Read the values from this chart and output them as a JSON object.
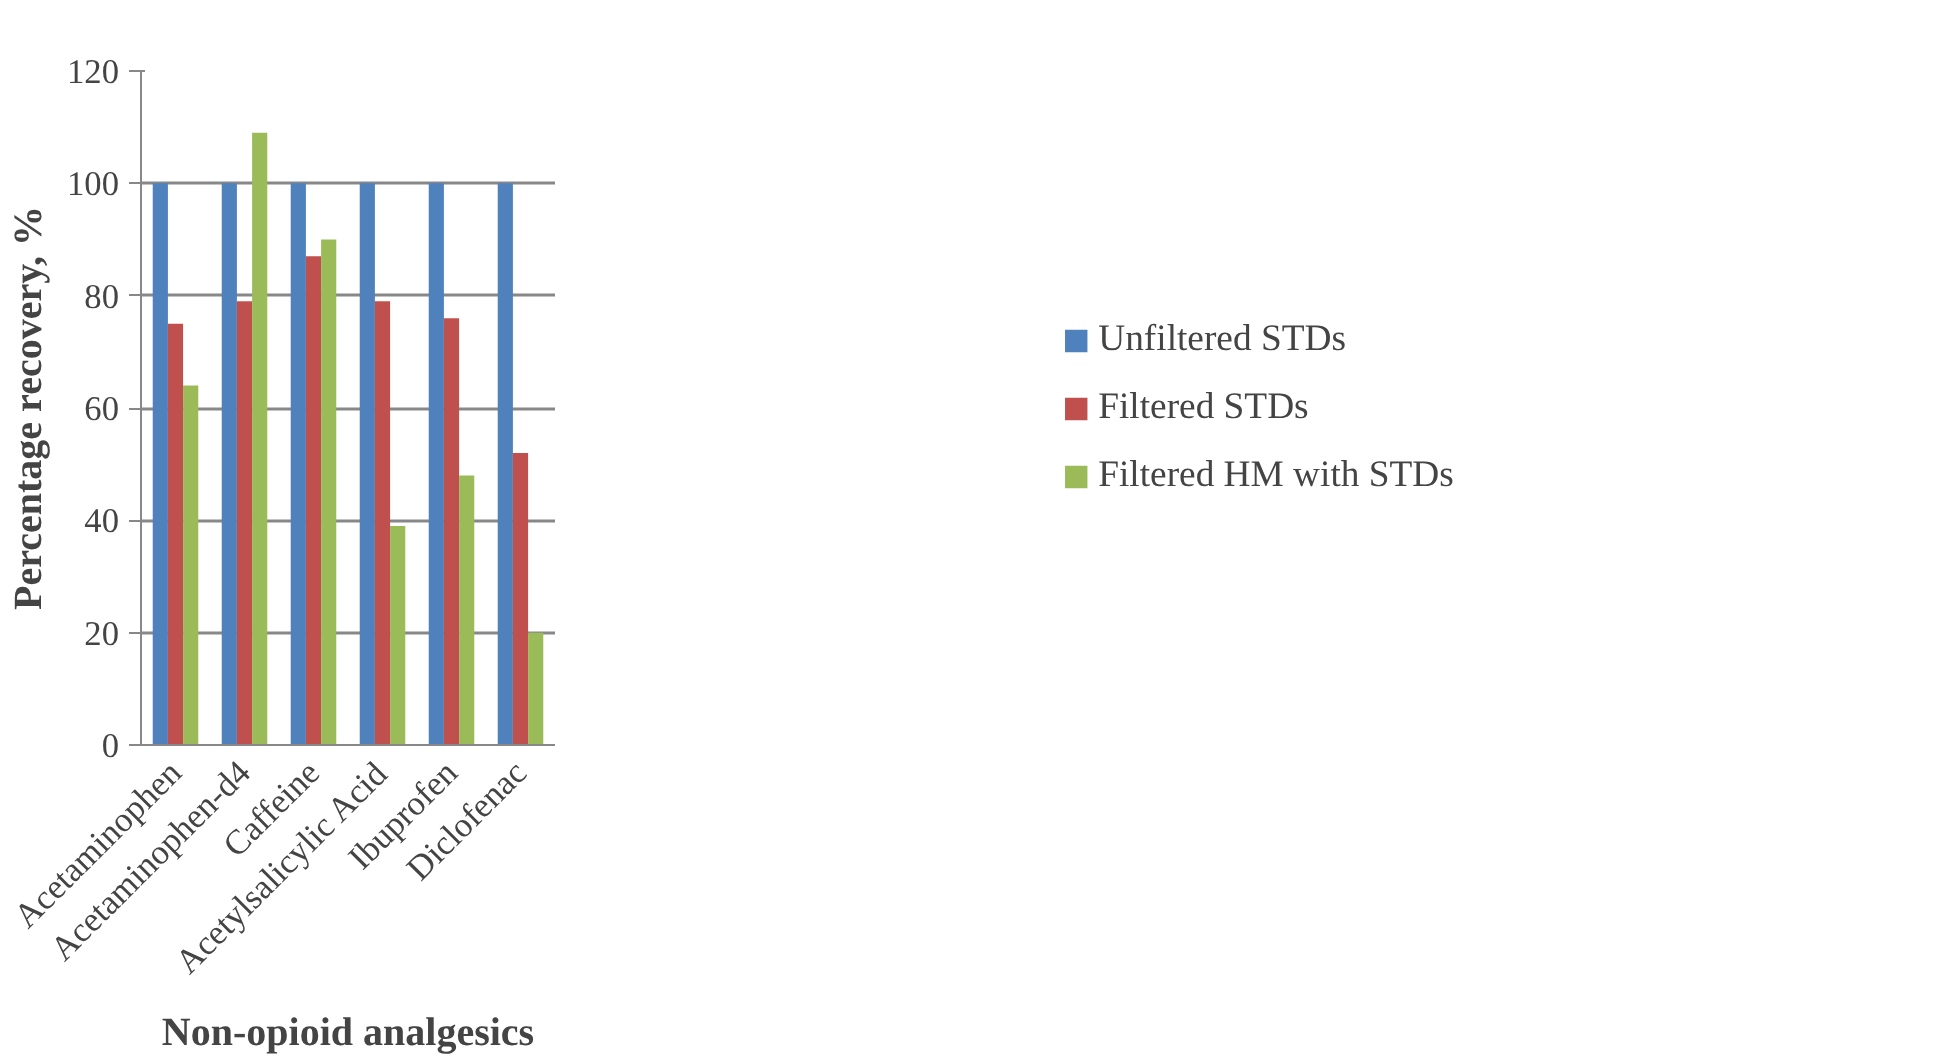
{
  "chart_data": {
    "type": "bar",
    "xlabel": "Non-opioid analgesics",
    "ylabel": "Percentage recovery, %",
    "categories": [
      "Acetaminophen",
      "Acetaminophen-d4",
      "Caffeine",
      "Acetylsalicylic Acid",
      "Ibuprofen",
      "Diclofenac"
    ],
    "series": [
      {
        "name": "Unfiltered STDs",
        "color": "#4f81bd",
        "values": [
          100,
          100,
          100,
          100,
          100,
          100
        ]
      },
      {
        "name": "Filtered STDs",
        "color": "#c0504d",
        "values": [
          75,
          79,
          87,
          79,
          76,
          52
        ]
      },
      {
        "name": "Filtered HM with STDs",
        "color": "#9bbb59",
        "values": [
          64,
          109,
          90,
          39,
          48,
          20
        ]
      }
    ],
    "ylim": [
      0,
      120
    ],
    "yticks": [
      0,
      20,
      40,
      60,
      80,
      100,
      120
    ],
    "grid": "y",
    "legend": "right"
  }
}
